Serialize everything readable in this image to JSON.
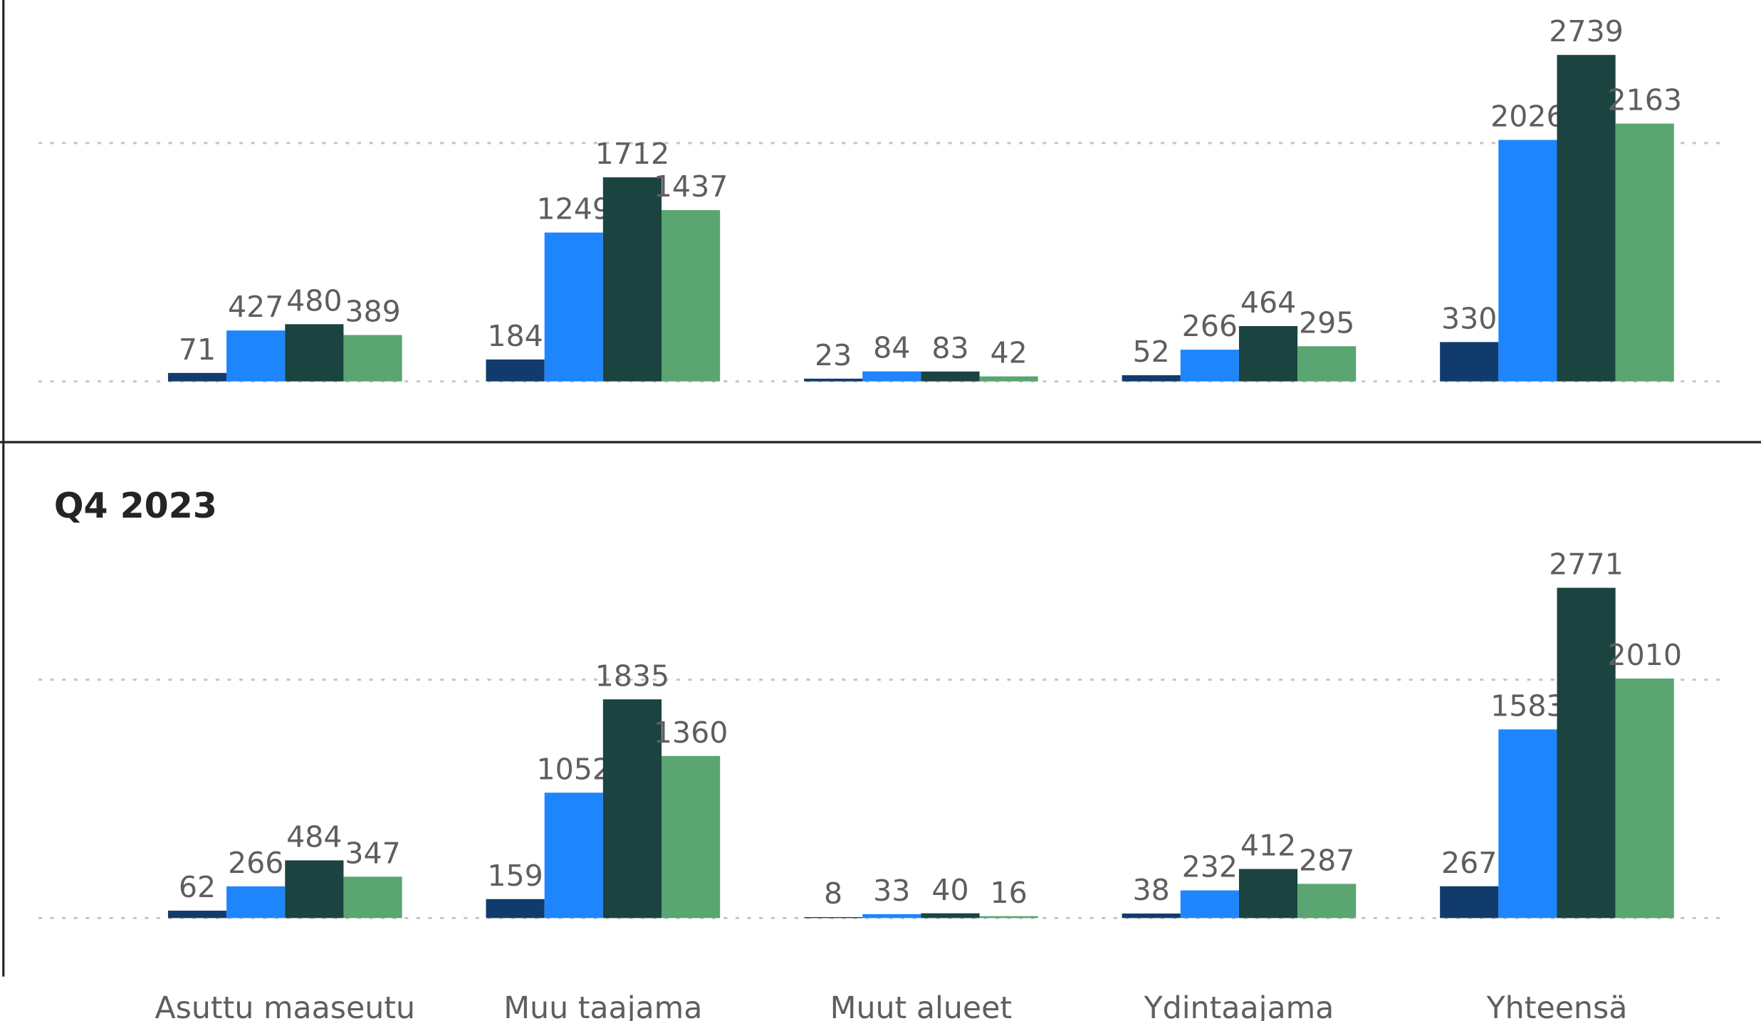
{
  "chart_data": [
    {
      "type": "bar",
      "series": [
        {
          "color": "#123b6d",
          "values": [
            71,
            184,
            23,
            52,
            330
          ]
        },
        {
          "color": "#1e85fc",
          "values": [
            427,
            1249,
            84,
            266,
            2026
          ]
        },
        {
          "color": "#1b433f",
          "values": [
            480,
            1712,
            83,
            464,
            2739
          ]
        },
        {
          "color": "#5aa572",
          "values": [
            389,
            1437,
            42,
            295,
            2163
          ]
        }
      ],
      "ylim": [
        0,
        3200
      ],
      "yticks": [
        0,
        2000
      ],
      "grid": true
    },
    {
      "type": "bar",
      "title": "Q4 2023",
      "categories": [
        "Asuttu maaseutu",
        "Muu taajama",
        "Muut alueet",
        "Ydintaajama",
        "Yhteensä"
      ],
      "series": [
        {
          "color": "#123b6d",
          "values": [
            62,
            159,
            8,
            38,
            267
          ]
        },
        {
          "color": "#1e85fc",
          "values": [
            266,
            1052,
            33,
            232,
            1583
          ]
        },
        {
          "color": "#1b433f",
          "values": [
            484,
            1835,
            40,
            412,
            2771
          ]
        },
        {
          "color": "#5aa572",
          "values": [
            347,
            1360,
            16,
            287,
            2010
          ]
        }
      ],
      "ylim": [
        0,
        3200
      ],
      "yticks": [
        0,
        2000
      ],
      "grid": true
    }
  ]
}
